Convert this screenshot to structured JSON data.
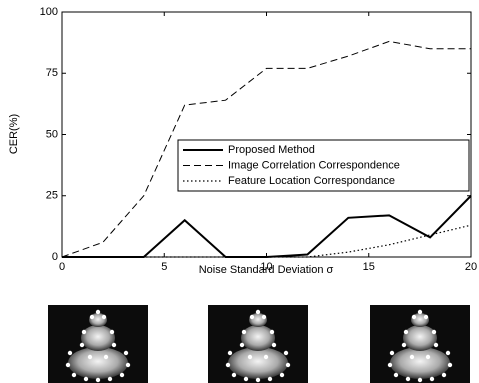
{
  "chart_data": {
    "type": "line",
    "x": [
      0,
      2,
      4,
      6,
      8,
      10,
      12,
      14,
      16,
      18,
      20
    ],
    "series": [
      {
        "name": "Proposed Method",
        "color": "#000000",
        "style": "solid",
        "values": [
          0,
          0,
          0,
          15,
          0,
          0,
          1,
          16,
          17,
          8,
          25
        ]
      },
      {
        "name": "Image Correlation Correspondence",
        "color": "#000000",
        "style": "dashed",
        "values": [
          0,
          6,
          25,
          62,
          64,
          77,
          77,
          82,
          88,
          85,
          85
        ]
      },
      {
        "name": "Feature Location Correspondance",
        "color": "#000000",
        "style": "dotted",
        "values": [
          0,
          0,
          0,
          0,
          0,
          0,
          0,
          2,
          5,
          9,
          13
        ]
      }
    ],
    "xlabel": "Noise Standard Deviation σ",
    "ylabel": "CER(%)",
    "xlim": [
      0,
      20
    ],
    "xticks": [
      0,
      5,
      10,
      15,
      20
    ],
    "ylim": [
      0,
      100
    ],
    "yticks": [
      0,
      25,
      50,
      75,
      100
    ],
    "legend": "right"
  }
}
